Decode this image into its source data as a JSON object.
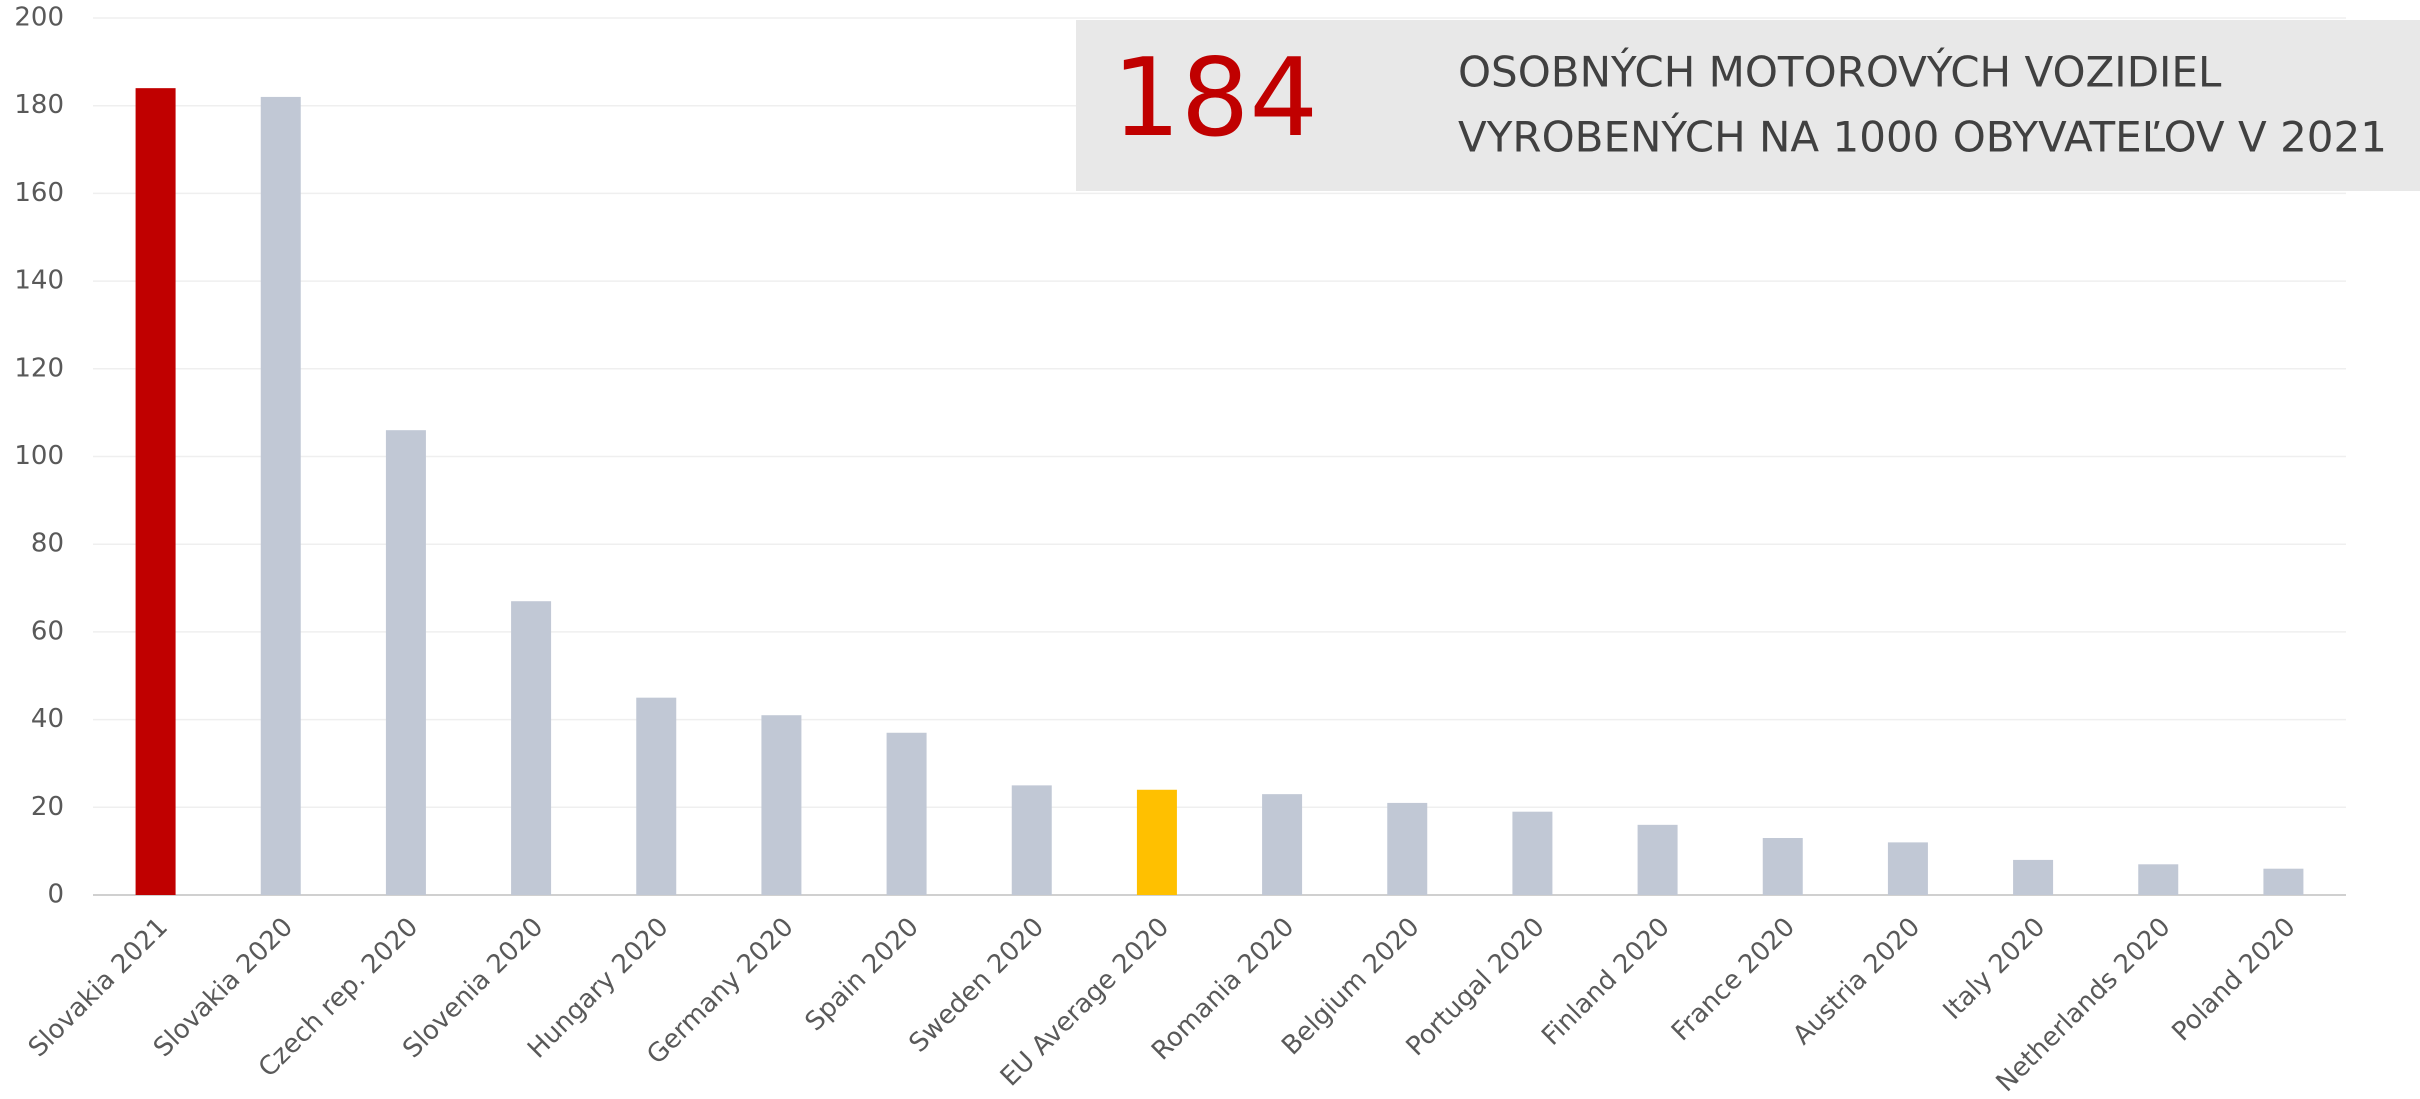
{
  "chart_data": {
    "type": "bar",
    "categories": [
      "Slovakia 2021",
      "Slovakia 2020",
      "Czech rep. 2020",
      "Slovenia 2020",
      "Hungary 2020",
      "Germany 2020",
      "Spain 2020",
      "Sweden 2020",
      "EU Average 2020",
      "Romania 2020",
      "Belgium 2020",
      "Portugal 2020",
      "Finland 2020",
      "France 2020",
      "Austria 2020",
      "Italy 2020",
      "Netherlands 2020",
      "Poland 2020"
    ],
    "values": [
      184,
      182,
      106,
      67,
      45,
      41,
      37,
      25,
      24,
      23,
      21,
      19,
      16,
      13,
      12,
      8,
      7,
      6
    ],
    "colors": [
      "#c00000",
      "#c1c8d5",
      "#c1c8d5",
      "#c1c8d5",
      "#c1c8d5",
      "#c1c8d5",
      "#c1c8d5",
      "#c1c8d5",
      "#ffc000",
      "#c1c8d5",
      "#c1c8d5",
      "#c1c8d5",
      "#c1c8d5",
      "#c1c8d5",
      "#c1c8d5",
      "#c1c8d5",
      "#c1c8d5",
      "#c1c8d5"
    ],
    "ylim": [
      0,
      200
    ],
    "yticks": [
      0,
      20,
      40,
      60,
      80,
      100,
      120,
      140,
      160,
      180,
      200
    ],
    "grid": true,
    "annotation": {
      "highlight": "184",
      "lines": [
        "OSOBNÝCH MOTOROVÝCH VOZIDIEL",
        "VYROBENÝCH NA 1000 OBYVATEĽOV V 2021"
      ]
    }
  }
}
